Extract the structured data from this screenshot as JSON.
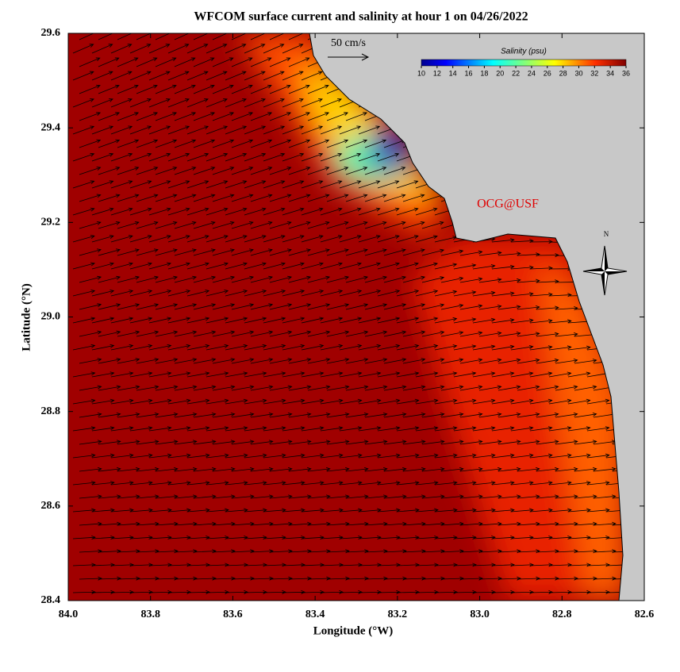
{
  "title": "WFCOM surface current and salinity at hour 1 on 04/26/2022",
  "map": {
    "xlabel": "Longitude (°W)",
    "ylabel": "Latitude (°N)",
    "xlim": [
      84.0,
      82.6
    ],
    "ylim": [
      28.4,
      29.6
    ],
    "xticks": [
      {
        "value": 84.0,
        "label": "84.0"
      },
      83.8,
      83.6,
      83.4,
      83.2,
      {
        "value": 83.0,
        "label": "83.0"
      },
      82.8,
      82.6
    ],
    "yticks": [
      28.4,
      28.6,
      28.8,
      {
        "value": 29.0,
        "label": "29.0"
      },
      29.2,
      29.4,
      29.6
    ]
  },
  "scale_label": "50 cm/s",
  "colorbar": {
    "title": "Salinity (psu)",
    "range": [
      10,
      36
    ],
    "ticks": [
      10,
      12,
      14,
      16,
      18,
      20,
      22,
      24,
      26,
      28,
      30,
      32,
      34,
      36
    ]
  },
  "credit": "OCG@USF",
  "north": "N"
}
